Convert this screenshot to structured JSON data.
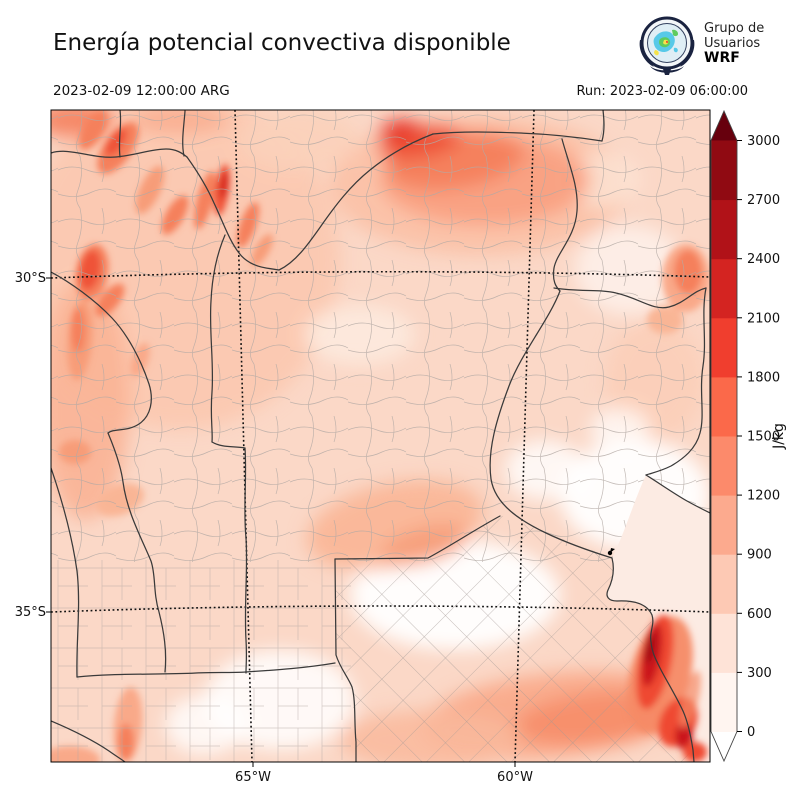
{
  "header": {
    "title": "Energía potencial convectiva disponible",
    "valid_time": "2023-02-09 12:00:00 ARG",
    "run_label": "Run: 2023-02-09 06:00:00"
  },
  "logo": {
    "line1": "Grupo de",
    "line2": "Usuarios",
    "line3": "WRF"
  },
  "map": {
    "lat_labels": [
      "30°S",
      "35°S"
    ],
    "lon_labels": [
      "65°W",
      "60°W"
    ]
  },
  "colorbar": {
    "unit": "J/kg",
    "tick_labels": [
      "3000",
      "2700",
      "2400",
      "2100",
      "1800",
      "1500",
      "1200",
      "900",
      "600",
      "300",
      "0"
    ],
    "segment_colors_low_to_high": [
      "#fff5f0",
      "#fee3d7",
      "#fdc9b4",
      "#fcaa8e",
      "#fc8a6b",
      "#fb694a",
      "#f03e2e",
      "#d42421",
      "#b11218",
      "#900a12"
    ],
    "over_color": "#67000d",
    "under_color": "#ffffff"
  }
}
